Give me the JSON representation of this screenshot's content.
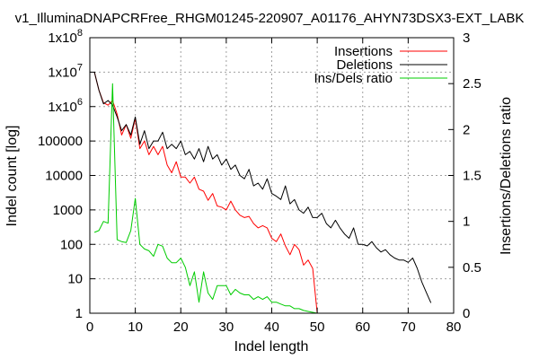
{
  "chart_data": {
    "type": "line",
    "title": "v1_IlluminaDNAPCRFree_RHGM01245-220907_A01176_AHYN73DSX3-EXT_LABK",
    "xlabel": "Indel length",
    "ylabel": "Indel count [log]",
    "y2label": "Insertions/Deletions ratio",
    "xlim": [
      0,
      80
    ],
    "ylim": [
      1,
      100000000
    ],
    "yscale": "log",
    "y2lim": [
      0,
      3
    ],
    "grid": true,
    "legend_position": "top-right",
    "x_ticks": [
      "0",
      "10",
      "20",
      "30",
      "40",
      "50",
      "60",
      "70",
      "80"
    ],
    "y_ticks": [
      "1",
      "10",
      "100",
      "1000",
      "10000",
      "100000",
      "1x10^6",
      "1x10^7",
      "1x10^8"
    ],
    "y2_ticks": [
      "0",
      "0.5",
      "1",
      "1.5",
      "2",
      "2.5",
      "3"
    ],
    "series": [
      {
        "name": "Insertions",
        "color": "#ff0000",
        "axis": "y",
        "x": [
          1,
          2,
          3,
          4,
          5,
          6,
          7,
          8,
          9,
          10,
          11,
          12,
          13,
          14,
          15,
          16,
          17,
          18,
          19,
          20,
          21,
          22,
          23,
          24,
          25,
          26,
          27,
          28,
          29,
          30,
          31,
          32,
          33,
          34,
          35,
          36,
          37,
          38,
          39,
          40,
          41,
          42,
          43,
          44,
          45,
          46,
          47,
          48,
          49,
          50
        ],
        "values": [
          10000000,
          3000000,
          1300000,
          1100000,
          1500000,
          600000,
          150000,
          300000,
          120000,
          450000,
          60000,
          100000,
          40000,
          70000,
          40000,
          70000,
          20000,
          12000,
          25000,
          9000,
          9000,
          6000,
          9000,
          4000,
          3500,
          1900,
          3000,
          1300,
          1200,
          1000,
          1800,
          1000,
          700,
          600,
          650,
          400,
          300,
          350,
          300,
          150,
          120,
          200,
          90,
          50,
          100,
          70,
          25,
          35,
          20,
          1
        ]
      },
      {
        "name": "Deletions",
        "color": "#000000",
        "axis": "y",
        "x": [
          1,
          2,
          3,
          4,
          5,
          6,
          7,
          8,
          9,
          10,
          11,
          12,
          13,
          14,
          15,
          16,
          17,
          18,
          19,
          20,
          21,
          22,
          23,
          24,
          25,
          26,
          27,
          28,
          29,
          30,
          31,
          32,
          33,
          34,
          35,
          36,
          37,
          38,
          39,
          40,
          41,
          42,
          43,
          44,
          45,
          46,
          47,
          48,
          49,
          50,
          51,
          52,
          53,
          54,
          55,
          56,
          57,
          58,
          59,
          60,
          61,
          62,
          63,
          64,
          65,
          66,
          67,
          68,
          69,
          70,
          71,
          72,
          73,
          74,
          75
        ],
        "values": [
          10000000,
          3000000,
          1200000,
          1500000,
          1100000,
          500000,
          200000,
          300000,
          150000,
          500000,
          80000,
          200000,
          60000,
          100000,
          100000,
          180000,
          60000,
          80000,
          60000,
          100000,
          40000,
          50000,
          30000,
          60000,
          25000,
          70000,
          30000,
          40000,
          20000,
          30000,
          15000,
          20000,
          10000,
          8000,
          15000,
          5000,
          6000,
          4000,
          8000,
          3000,
          2500,
          2000,
          5000,
          1500,
          2000,
          1000,
          800,
          1200,
          600,
          600,
          800,
          400,
          300,
          500,
          300,
          200,
          150,
          300,
          100,
          100,
          90,
          120,
          80,
          60,
          70,
          50,
          40,
          35,
          35,
          30,
          40,
          20,
          8,
          4,
          2
        ]
      },
      {
        "name": "Ins/Dels ratio",
        "color": "#00cc00",
        "axis": "y2",
        "x": [
          1,
          2,
          3,
          4,
          5,
          6,
          7,
          8,
          9,
          10,
          11,
          12,
          13,
          14,
          15,
          16,
          17,
          18,
          19,
          20,
          21,
          22,
          23,
          24,
          25,
          26,
          27,
          28,
          29,
          30,
          31,
          32,
          33,
          34,
          35,
          36,
          37,
          38,
          39,
          40,
          41,
          42,
          43,
          44,
          45,
          46,
          47,
          48,
          49,
          50
        ],
        "values": [
          0.88,
          0.9,
          1.0,
          0.98,
          2.5,
          0.8,
          0.78,
          0.77,
          0.9,
          1.25,
          0.75,
          0.7,
          0.68,
          0.62,
          0.75,
          0.73,
          0.6,
          0.55,
          0.55,
          0.6,
          0.5,
          0.3,
          0.45,
          0.12,
          0.45,
          0.22,
          0.15,
          0.3,
          0.3,
          0.3,
          0.2,
          0.26,
          0.22,
          0.2,
          0.2,
          0.15,
          0.18,
          0.15,
          0.18,
          0.12,
          0.12,
          0.1,
          0.08,
          0.08,
          0.05,
          0.05,
          0.03,
          0.02,
          0.01,
          0.0
        ]
      }
    ]
  }
}
